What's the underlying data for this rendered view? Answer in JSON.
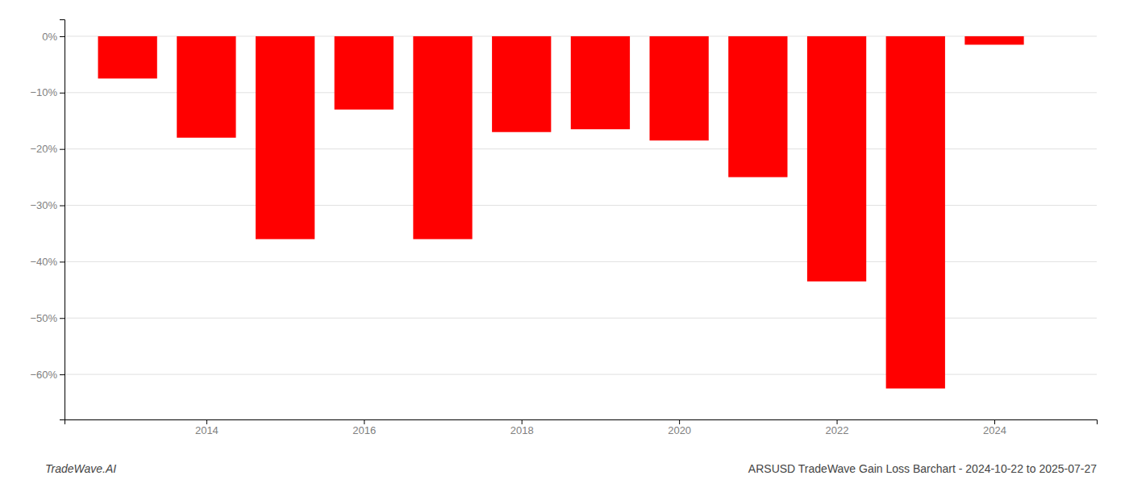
{
  "chart_data": {
    "type": "bar",
    "title": "ARSUSD TradeWave Gain Loss Barchart - 2024-10-22 to 2025-07-27",
    "annotations": [
      "TradeWave.AI"
    ],
    "x": [
      2013,
      2014,
      2015,
      2016,
      2017,
      2018,
      2019,
      2020,
      2021,
      2022,
      2023,
      2024
    ],
    "values": [
      -7.5,
      -18.0,
      -36.0,
      -13.0,
      -36.0,
      -17.0,
      -16.5,
      -18.5,
      -25.0,
      -43.5,
      -62.5,
      -1.5
    ],
    "color": "#ff0000",
    "xlim": [
      2012.2,
      2025.3
    ],
    "xticks": [
      2014,
      2016,
      2018,
      2020,
      2022,
      2024
    ],
    "ylim": [
      -68,
      3
    ],
    "yticks": [
      {
        "value": 0,
        "label": "0%"
      },
      {
        "value": -10,
        "label": "−10%"
      },
      {
        "value": -20,
        "label": "−20%"
      },
      {
        "value": -30,
        "label": "−30%"
      },
      {
        "value": -40,
        "label": "−40%"
      },
      {
        "value": -50,
        "label": "−50%"
      },
      {
        "value": -60,
        "label": "−60%"
      }
    ],
    "grid": true
  }
}
